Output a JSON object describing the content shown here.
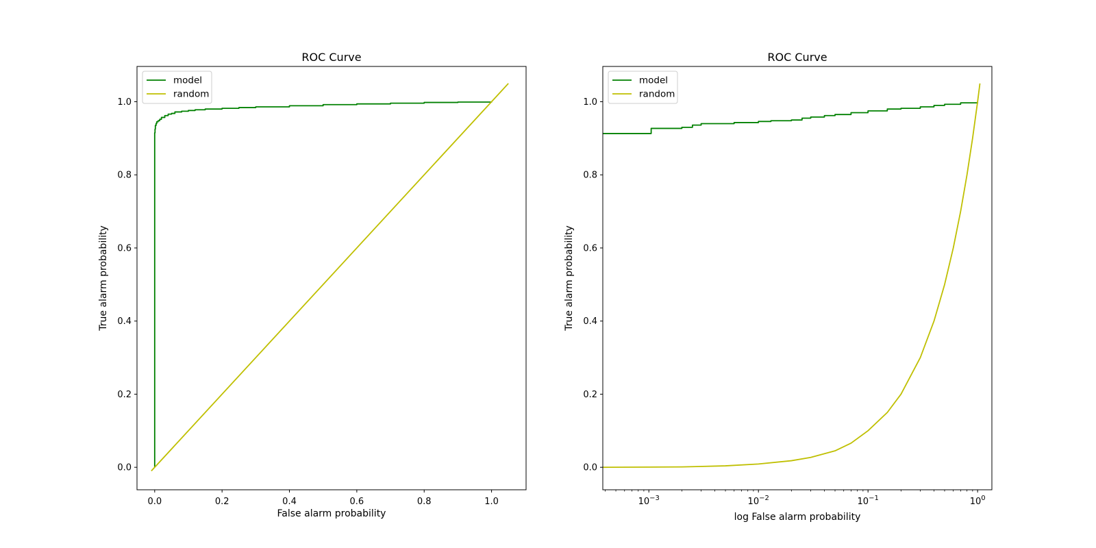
{
  "chart_data": [
    {
      "type": "line",
      "title": "ROC Curve",
      "xlabel": "False alarm probability",
      "ylabel": "True alarm probability",
      "xscale": "linear",
      "xlim": [
        -0.0525,
        1.1025
      ],
      "ylim": [
        -0.0615,
        1.0965
      ],
      "xticks": [
        0.0,
        0.2,
        0.4,
        0.6,
        0.8,
        1.0
      ],
      "xtick_labels": [
        "0.0",
        "0.2",
        "0.4",
        "0.6",
        "0.8",
        "1.0"
      ],
      "yticks": [
        0.0,
        0.2,
        0.4,
        0.6,
        0.8,
        1.0
      ],
      "ytick_labels": [
        "0.0",
        "0.2",
        "0.4",
        "0.6",
        "0.8",
        "1.0"
      ],
      "legend": "upper-left",
      "grid": false,
      "series": [
        {
          "name": "model",
          "color": "#008000",
          "step": true,
          "x": [
            0.0,
            0.0,
            0.0,
            0.001,
            0.002,
            0.004,
            0.006,
            0.01,
            0.015,
            0.02,
            0.03,
            0.04,
            0.05,
            0.06,
            0.08,
            0.1,
            0.12,
            0.15,
            0.2,
            0.25,
            0.3,
            0.4,
            0.5,
            0.6,
            0.7,
            0.8,
            0.9,
            1.0
          ],
          "y": [
            0.0,
            0.91,
            0.915,
            0.925,
            0.935,
            0.94,
            0.945,
            0.948,
            0.952,
            0.957,
            0.962,
            0.966,
            0.968,
            0.972,
            0.974,
            0.976,
            0.978,
            0.98,
            0.982,
            0.984,
            0.986,
            0.989,
            0.992,
            0.994,
            0.996,
            0.998,
            0.999,
            1.0
          ]
        },
        {
          "name": "random",
          "color": "#bfbf00",
          "step": false,
          "x": [
            -0.01,
            1.05
          ],
          "y": [
            -0.01,
            1.05
          ]
        }
      ]
    },
    {
      "type": "line",
      "title": "ROC Curve",
      "xlabel": "log False alarm probability",
      "ylabel": "True alarm probability",
      "xscale": "log",
      "xlim": [
        0.00038,
        1.35
      ],
      "ylim": [
        -0.0615,
        1.0965
      ],
      "xticks": [
        0.001,
        0.01,
        0.1,
        1.0
      ],
      "xtick_labels": [
        [
          "10",
          "−3"
        ],
        [
          "10",
          "−2"
        ],
        [
          "10",
          "−1"
        ],
        [
          "10",
          "0"
        ]
      ],
      "yticks": [
        0.0,
        0.2,
        0.4,
        0.6,
        0.8,
        1.0
      ],
      "ytick_labels": [
        "0.0",
        "0.2",
        "0.4",
        "0.6",
        "0.8",
        "1.0"
      ],
      "legend": "upper-left",
      "grid": false,
      "series": [
        {
          "name": "model",
          "color": "#008000",
          "step": true,
          "x": [
            0.00038,
            0.00105,
            0.002,
            0.0025,
            0.003,
            0.006,
            0.01,
            0.013,
            0.02,
            0.025,
            0.03,
            0.04,
            0.05,
            0.07,
            0.1,
            0.15,
            0.2,
            0.3,
            0.4,
            0.5,
            0.7,
            1.0
          ],
          "y": [
            0.913,
            0.927,
            0.93,
            0.936,
            0.94,
            0.943,
            0.946,
            0.948,
            0.95,
            0.955,
            0.958,
            0.962,
            0.965,
            0.97,
            0.975,
            0.98,
            0.982,
            0.986,
            0.99,
            0.993,
            0.997,
            1.0
          ]
        },
        {
          "name": "random",
          "color": "#bfbf00",
          "step": false,
          "x": [
            0.00038,
            0.001,
            0.002,
            0.005,
            0.01,
            0.02,
            0.03,
            0.05,
            0.07,
            0.1,
            0.15,
            0.2,
            0.3,
            0.4,
            0.5,
            0.6,
            0.7,
            0.8,
            0.9,
            1.0,
            1.05
          ],
          "y": [
            0.0,
            0.0005,
            0.001,
            0.004,
            0.009,
            0.018,
            0.027,
            0.045,
            0.066,
            0.1,
            0.15,
            0.2,
            0.3,
            0.4,
            0.5,
            0.6,
            0.7,
            0.8,
            0.9,
            1.0,
            1.05
          ]
        }
      ]
    }
  ]
}
